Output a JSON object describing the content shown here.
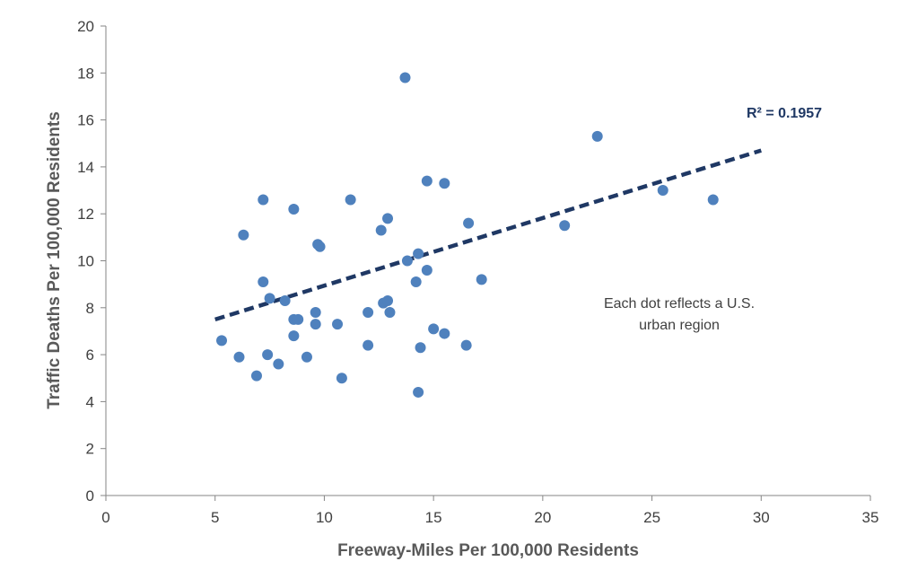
{
  "chart_data": {
    "type": "scatter",
    "title": "",
    "xlabel": "Freeway-Miles Per 100,000 Residents",
    "ylabel": "Traffic Deaths Per 100,000 Residents",
    "xlim": [
      0,
      35
    ],
    "ylim": [
      0,
      20
    ],
    "xticks": [
      0,
      5,
      10,
      15,
      20,
      25,
      30,
      35
    ],
    "yticks": [
      0,
      2,
      4,
      6,
      8,
      10,
      12,
      14,
      16,
      18,
      20
    ],
    "grid": false,
    "legend": "none",
    "point_color": "#4F81BD",
    "trend_color": "#1F3864",
    "trendline": {
      "type": "linear",
      "x": [
        5,
        30
      ],
      "y": [
        7.5,
        14.7
      ],
      "style": "dashed",
      "r2_label": "R² = 0.1957"
    },
    "annotation": [
      "Each dot  reflects a U.S.",
      "urban region"
    ],
    "points": [
      {
        "x": 5.3,
        "y": 6.6
      },
      {
        "x": 6.1,
        "y": 5.9
      },
      {
        "x": 6.3,
        "y": 11.1
      },
      {
        "x": 6.9,
        "y": 5.1
      },
      {
        "x": 7.2,
        "y": 12.6
      },
      {
        "x": 7.2,
        "y": 9.1
      },
      {
        "x": 7.4,
        "y": 6.0
      },
      {
        "x": 7.5,
        "y": 8.4
      },
      {
        "x": 7.9,
        "y": 5.6
      },
      {
        "x": 8.2,
        "y": 8.3
      },
      {
        "x": 8.6,
        "y": 12.2
      },
      {
        "x": 8.6,
        "y": 6.8
      },
      {
        "x": 8.6,
        "y": 7.5
      },
      {
        "x": 8.8,
        "y": 7.5
      },
      {
        "x": 9.2,
        "y": 5.9
      },
      {
        "x": 9.6,
        "y": 7.8
      },
      {
        "x": 9.7,
        "y": 10.7
      },
      {
        "x": 9.8,
        "y": 10.6
      },
      {
        "x": 9.6,
        "y": 7.3
      },
      {
        "x": 10.6,
        "y": 7.3
      },
      {
        "x": 10.8,
        "y": 5.0
      },
      {
        "x": 11.2,
        "y": 12.6
      },
      {
        "x": 12.0,
        "y": 7.8
      },
      {
        "x": 12.0,
        "y": 6.4
      },
      {
        "x": 12.6,
        "y": 11.3
      },
      {
        "x": 12.7,
        "y": 8.2
      },
      {
        "x": 12.9,
        "y": 11.8
      },
      {
        "x": 12.9,
        "y": 8.3
      },
      {
        "x": 13.0,
        "y": 7.8
      },
      {
        "x": 13.7,
        "y": 17.8
      },
      {
        "x": 13.8,
        "y": 10.0
      },
      {
        "x": 14.2,
        "y": 9.1
      },
      {
        "x": 14.3,
        "y": 10.3
      },
      {
        "x": 14.3,
        "y": 4.4
      },
      {
        "x": 14.4,
        "y": 6.3
      },
      {
        "x": 14.7,
        "y": 13.4
      },
      {
        "x": 14.7,
        "y": 9.6
      },
      {
        "x": 15.0,
        "y": 7.1
      },
      {
        "x": 15.5,
        "y": 13.3
      },
      {
        "x": 15.5,
        "y": 6.9
      },
      {
        "x": 16.5,
        "y": 6.4
      },
      {
        "x": 16.6,
        "y": 11.6
      },
      {
        "x": 17.2,
        "y": 9.2
      },
      {
        "x": 21.0,
        "y": 11.5
      },
      {
        "x": 22.5,
        "y": 15.3
      },
      {
        "x": 25.5,
        "y": 13.0
      },
      {
        "x": 27.8,
        "y": 12.6
      }
    ]
  }
}
